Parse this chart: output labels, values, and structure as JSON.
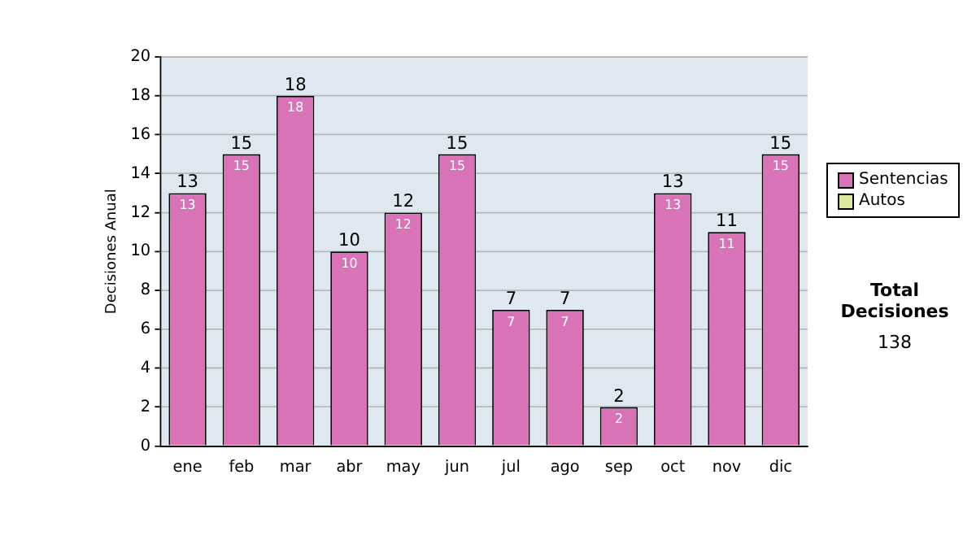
{
  "chart_data": {
    "type": "bar",
    "ylabel": "Decisiones Anual",
    "categories": [
      "ene",
      "feb",
      "mar",
      "abr",
      "may",
      "jun",
      "jul",
      "ago",
      "sep",
      "oct",
      "nov",
      "dic"
    ],
    "series": [
      {
        "name": "Sentencias",
        "color": "#d873b8",
        "values": [
          13,
          15,
          18,
          10,
          12,
          15,
          7,
          7,
          2,
          13,
          11,
          15
        ]
      },
      {
        "name": "Autos",
        "color": "#d8e8a0",
        "values": [
          null,
          null,
          null,
          null,
          null,
          null,
          null,
          null,
          null,
          null,
          null,
          null
        ]
      }
    ],
    "stacked": true,
    "data_labels": true,
    "totals": [
      "13",
      "15",
      "18",
      "10",
      "12",
      "15",
      "7",
      "7",
      "2",
      "13",
      "11",
      "15"
    ],
    "ylim": [
      0,
      20
    ],
    "yticks": [
      0,
      2,
      4,
      6,
      8,
      10,
      12,
      14,
      16,
      18,
      20
    ],
    "grid": "y",
    "legend": "right",
    "annotations": [
      "Total Decisiones",
      "138"
    ]
  }
}
